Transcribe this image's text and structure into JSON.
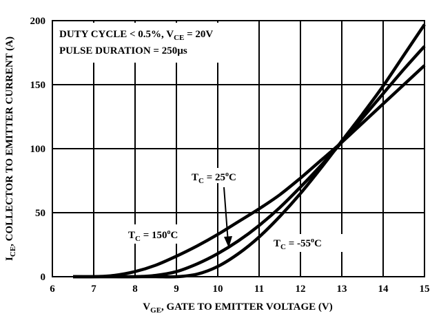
{
  "chart_data": {
    "type": "line",
    "xlabel": {
      "main": "V",
      "sub": "GE",
      "rest": ", GATE TO EMITTER VOLTAGE (V)"
    },
    "ylabel": {
      "main": "I",
      "sub": "CE",
      "rest": ", COLLECTOR TO EMITTER CURRENT (A)"
    },
    "xlim": [
      6,
      15
    ],
    "ylim": [
      0,
      200
    ],
    "xticks": [
      6,
      7,
      8,
      9,
      10,
      11,
      12,
      13,
      14,
      15
    ],
    "yticks": [
      0,
      50,
      100,
      150,
      200
    ],
    "grid": true,
    "notes": {
      "line1": {
        "pre": "DUTY CYCLE < 0.5%, V",
        "sub": "CE",
        "post": " = 20V"
      },
      "line2": "PULSE DURATION = 250µs"
    },
    "series": [
      {
        "name": "T_C = 150°C",
        "label": {
          "pre": "T",
          "sub": "C",
          "mid": " = 150",
          "sup": "o",
          "post": "C"
        },
        "x": [
          6.5,
          7,
          7.5,
          8,
          8.5,
          9,
          9.5,
          10,
          10.5,
          11,
          11.5,
          12,
          12.5,
          13,
          13.5,
          14,
          14.5,
          15
        ],
        "y": [
          0,
          0,
          1,
          4,
          9,
          16,
          24,
          33,
          43,
          53,
          64,
          77,
          91,
          105,
          120,
          135,
          150,
          165
        ]
      },
      {
        "name": "T_C = 25°C",
        "label": {
          "pre": "T",
          "sub": "C",
          "mid": " = 25",
          "sup": "o",
          "post": "C"
        },
        "x": [
          6.5,
          7,
          7.5,
          8,
          8.5,
          9,
          9.5,
          10,
          10.5,
          11,
          11.5,
          12,
          12.5,
          13,
          13.5,
          14,
          14.5,
          15
        ],
        "y": [
          0,
          0,
          0,
          0,
          1,
          4,
          10,
          18,
          28,
          40,
          54,
          70,
          87,
          105,
          124,
          143,
          162,
          180
        ]
      },
      {
        "name": "T_C = -55°C",
        "label": {
          "pre": "T",
          "sub": "C",
          "mid": " = -55",
          "sup": "o",
          "post": "C"
        },
        "x": [
          6.5,
          7,
          7.5,
          8,
          8.5,
          9,
          9.5,
          10,
          10.5,
          11,
          11.5,
          12,
          12.5,
          13,
          13.5,
          14,
          14.5,
          15
        ],
        "y": [
          0,
          0,
          0,
          0,
          0,
          0,
          2,
          8,
          18,
          31,
          47,
          65,
          85,
          106,
          127,
          149,
          173,
          197
        ]
      }
    ]
  }
}
